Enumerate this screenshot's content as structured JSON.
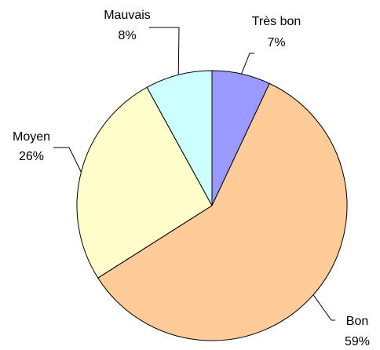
{
  "chart_data": {
    "type": "pie",
    "categories": [
      "Très bon",
      "Bon",
      "Moyen",
      "Mauvais"
    ],
    "values": [
      7,
      59,
      26,
      8
    ],
    "value_labels": [
      "7%",
      "59%",
      "26%",
      "8%"
    ],
    "colors": [
      "#9999ff",
      "#ffcc99",
      "#ffffcc",
      "#ccffff"
    ]
  }
}
